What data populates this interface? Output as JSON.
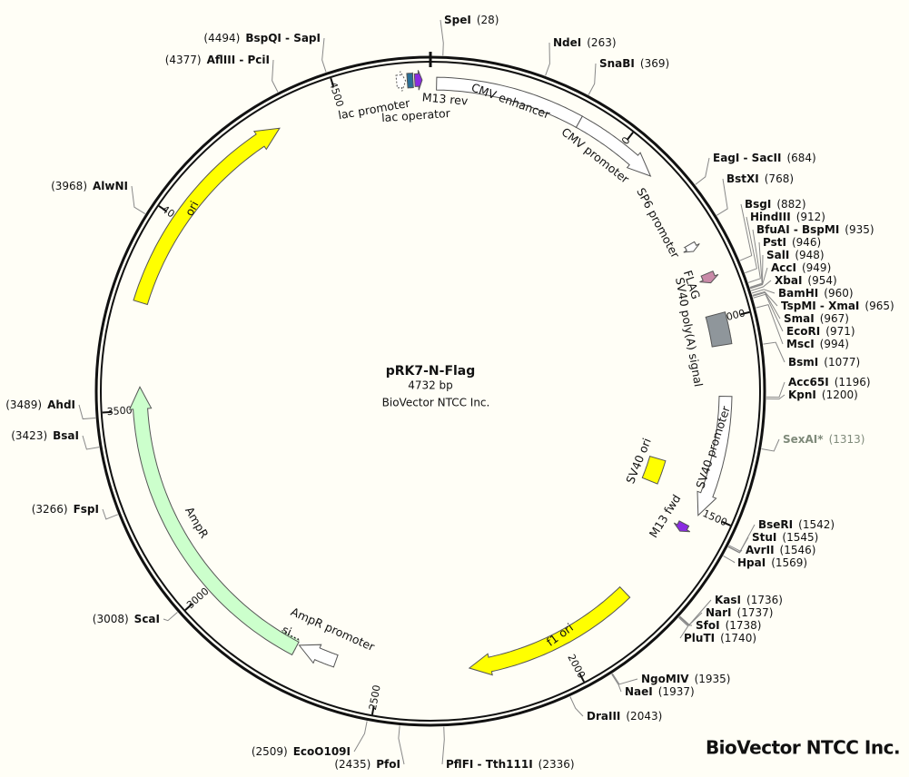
{
  "title": "pRK7-N-Flag",
  "length": "4732 bp",
  "company": "BioVector NTCC Inc.",
  "watermark": "BioVector NTCC Inc.",
  "scale_ticks": [
    500,
    1000,
    1500,
    2000,
    2500,
    3000,
    3500,
    4000,
    4500
  ],
  "sites": [
    {
      "name": "SpeI",
      "position": "(28)"
    },
    {
      "name": "NdeI",
      "position": "(263)"
    },
    {
      "name": "SnaBI",
      "position": "(369)"
    },
    {
      "name": "EagI - SacII",
      "position": "(684)"
    },
    {
      "name": "BstXI",
      "position": "(768)"
    },
    {
      "name": "BsgI",
      "position": "(882)"
    },
    {
      "name": "HindIII",
      "position": "(912)"
    },
    {
      "name": "BfuAI - BspMI",
      "position": "(935)"
    },
    {
      "name": "PstI",
      "position": "(946)"
    },
    {
      "name": "SalI",
      "position": "(948)"
    },
    {
      "name": "AccI",
      "position": "(949)"
    },
    {
      "name": "XbaI",
      "position": "(954)"
    },
    {
      "name": "BamHI",
      "position": "(960)"
    },
    {
      "name": "TspMI - XmaI",
      "position": "(965)"
    },
    {
      "name": "SmaI",
      "position": "(967)"
    },
    {
      "name": "EcoRI",
      "position": "(971)"
    },
    {
      "name": "MscI",
      "position": "(994)"
    },
    {
      "name": "BsmI",
      "position": "(1077)"
    },
    {
      "name": "Acc65I",
      "position": "(1196)"
    },
    {
      "name": "KpnI",
      "position": "(1200)"
    },
    {
      "name": "SexAI*",
      "position": "(1313)",
      "color": "#7f8a7a"
    },
    {
      "name": "BseRI",
      "position": "(1542)"
    },
    {
      "name": "StuI",
      "position": "(1545)"
    },
    {
      "name": "AvrII",
      "position": "(1546)"
    },
    {
      "name": "HpaI",
      "position": "(1569)"
    },
    {
      "name": "KasI",
      "position": "(1736)"
    },
    {
      "name": "NarI",
      "position": "(1737)"
    },
    {
      "name": "SfoI",
      "position": "(1738)"
    },
    {
      "name": "PluTI",
      "position": "(1740)"
    },
    {
      "name": "NgoMIV",
      "position": "(1935)"
    },
    {
      "name": "NaeI",
      "position": "(1937)"
    },
    {
      "name": "DraIII",
      "position": "(2043)"
    },
    {
      "name": "PflFI - Tth111I",
      "position": "(2336)"
    },
    {
      "name": "PfoI",
      "position": "(2435)"
    },
    {
      "name": "EcoO109I",
      "position": "(2509)"
    },
    {
      "name": "ScaI",
      "position": "(3008)"
    },
    {
      "name": "FspI",
      "position": "(3266)"
    },
    {
      "name": "BsaI",
      "position": "(3423)"
    },
    {
      "name": "AhdI",
      "position": "(3489)"
    },
    {
      "name": "AlwNI",
      "position": "(3968)"
    },
    {
      "name": "AflIII - PciI",
      "position": "(4377)"
    },
    {
      "name": "BspQI - SapI",
      "position": "(4494)"
    }
  ],
  "features": [
    {
      "label": "CMV enhancer"
    },
    {
      "label": "CMV promoter"
    },
    {
      "label": "SP6 promoter"
    },
    {
      "label": "FLAG"
    },
    {
      "label": "SV40 poly(A) signal"
    },
    {
      "label": "SV40 promoter"
    },
    {
      "label": "SV40 ori"
    },
    {
      "label": "M13 fwd"
    },
    {
      "label": "f1 ori"
    },
    {
      "label": "AmpR promoter"
    },
    {
      "label": "si..."
    },
    {
      "label": "AmpR"
    },
    {
      "label": "ori"
    },
    {
      "label": "lac promoter"
    },
    {
      "label": "lac operator"
    },
    {
      "label": "M13 rev"
    }
  ]
}
